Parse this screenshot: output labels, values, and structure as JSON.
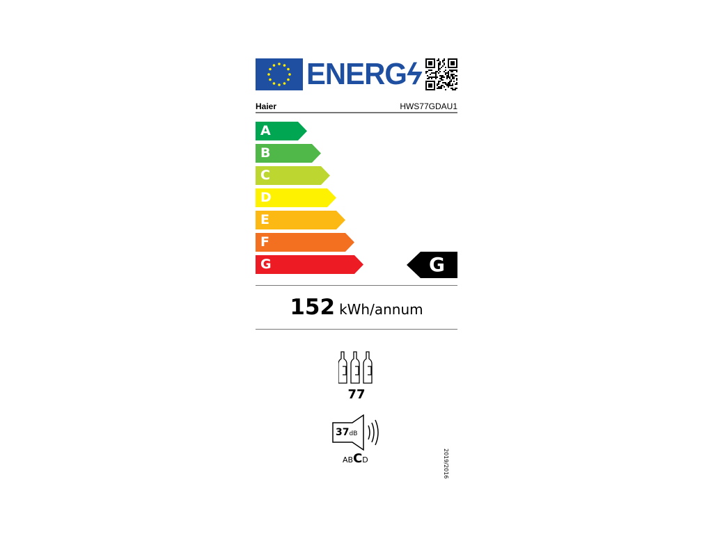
{
  "header": {
    "logo_text": "ENERG",
    "brand": "Haier",
    "model": "HWS77GDAU1"
  },
  "scale": [
    {
      "letter": "A",
      "color": "#00a651"
    },
    {
      "letter": "B",
      "color": "#50b848"
    },
    {
      "letter": "C",
      "color": "#bed630"
    },
    {
      "letter": "D",
      "color": "#fff200"
    },
    {
      "letter": "E",
      "color": "#fdb913"
    },
    {
      "letter": "F",
      "color": "#f37021"
    },
    {
      "letter": "G",
      "color": "#ed1c24"
    }
  ],
  "rating": {
    "class": "G"
  },
  "consumption": {
    "value": "152",
    "unit": "kWh/annum"
  },
  "capacity": {
    "bottles": "77",
    "icon": "wine-bottles-icon"
  },
  "noise": {
    "value": "37",
    "unit": "dB",
    "classes": [
      "A",
      "B",
      "C",
      "D"
    ],
    "selected": "C",
    "icon": "speaker-icon"
  },
  "regulation": "2019/2016"
}
